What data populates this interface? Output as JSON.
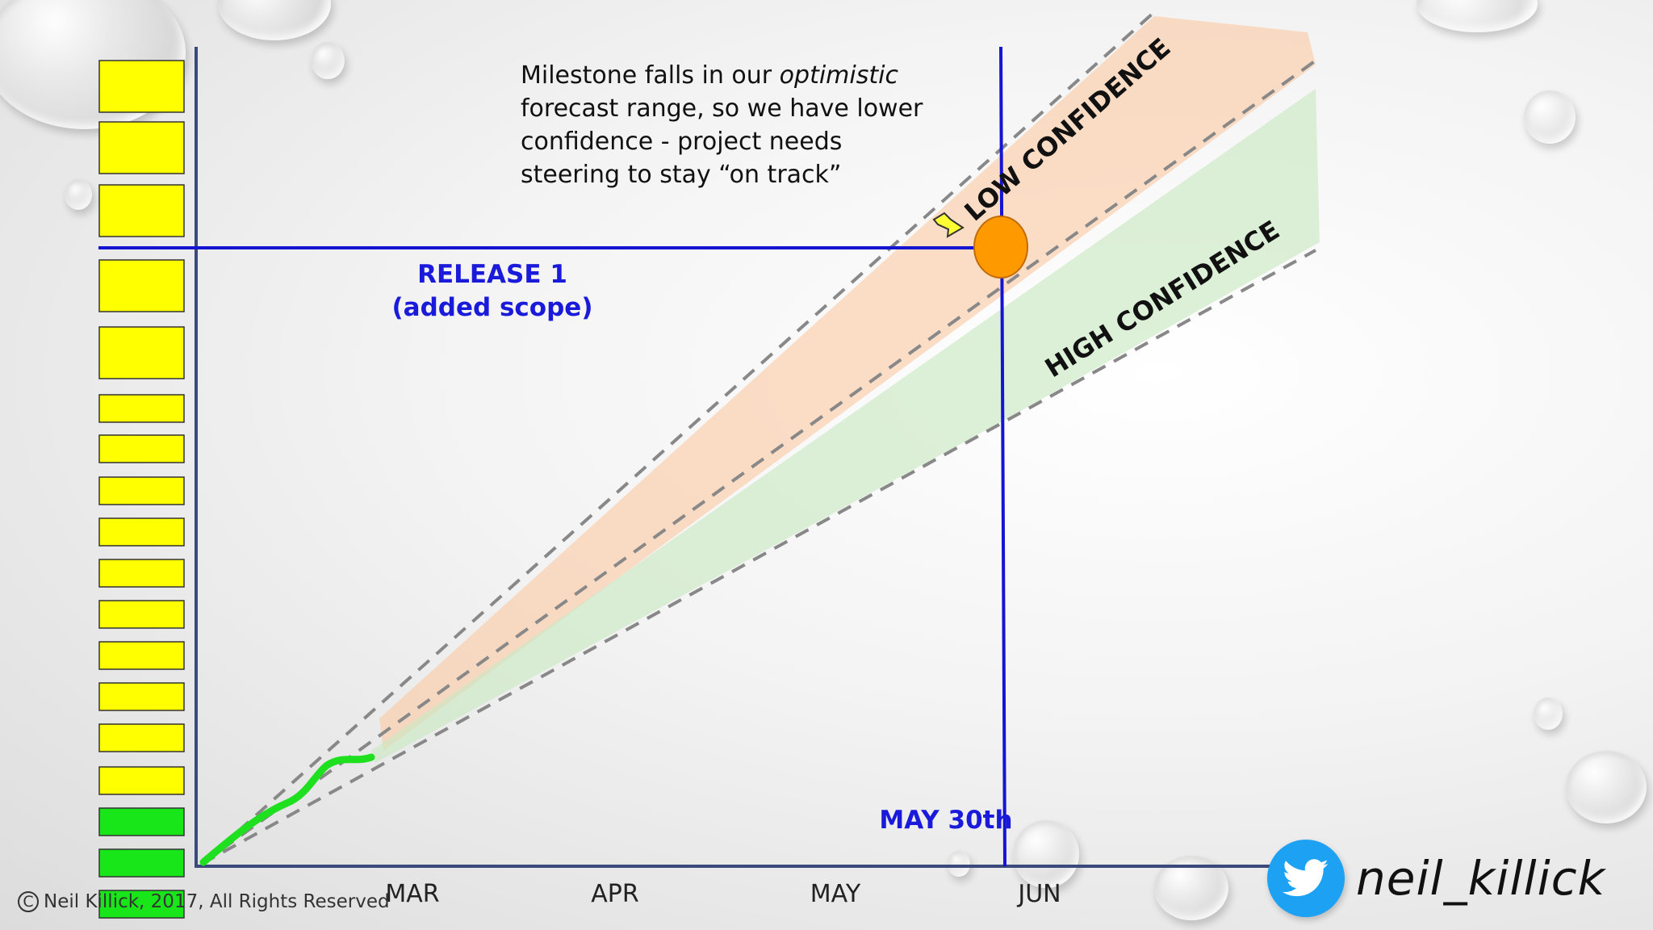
{
  "annotation": {
    "line1_a": "Milestone falls in our ",
    "line1_b": "optimistic",
    "line2": "forecast range, so we have lower",
    "line3": "confidence - project needs",
    "line4": "steering to stay “on track”"
  },
  "release": {
    "title": "RELEASE 1",
    "subtitle": "(added scope)"
  },
  "milestone": {
    "date_label": "MAY 30th"
  },
  "months": [
    "MAR",
    "APR",
    "MAY",
    "JUN"
  ],
  "zones": {
    "low": "LOW CONFIDENCE",
    "high": "HIGH CONFIDENCE"
  },
  "backlog": {
    "items_total": 18,
    "items_done": 3,
    "done_color": "#19e619",
    "todo_color": "#ffff00"
  },
  "colors": {
    "axis": "#3a4a7a",
    "milestone_line": "#1414d2",
    "milestone_marker": "#ff9900",
    "low_zone": "#fbc9a3",
    "high_zone": "#cbe8c3",
    "progress_line": "#1ee01e",
    "twitter": "#1da1f2"
  },
  "footer": {
    "copyright": "Neil Killick, 2017, All Rights Reserved",
    "twitter_handle": "neil_killick"
  },
  "icons": {
    "copyright": "copyright-icon",
    "twitter": "twitter-bird-icon",
    "arrow": "pointer-arrow-icon"
  }
}
